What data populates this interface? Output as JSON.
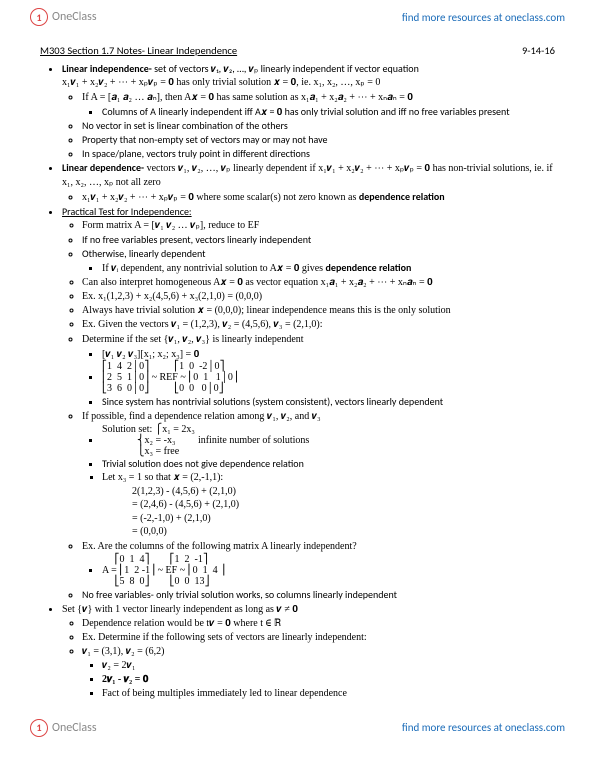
{
  "logo_text": "OneClass",
  "header_link": "find more resources at oneclass.com",
  "footer_link": "find more resources at oneclass.com",
  "title": "M303 Section 1.7 Notes- Linear Independence",
  "date": "9-14-16",
  "b1": {
    "label": "Linear independence-",
    "rest": " set of vectors 𝒗₁, 𝒗₂, …, 𝒗ₚ linearly independent if vector equation",
    "eq1": "x₁𝒗₁ + x₂𝒗₂ + ⋯ + xₚ𝒗ₚ = 𝟎 has only trivial solution 𝒙 = 𝟎, ie. x₁, x₂, …, xₚ = 0",
    "s1": "If A = [𝒂₁ 𝒂₂ … 𝒂ₙ], then A𝒙 = 𝟎 has same solution as x₁𝒂₁ + x₂𝒂₂ + ⋯ + xₙ𝒂ₙ = 𝟎",
    "s1a": "Columns of A linearly independent iff A𝒙 = 𝟎 has only trivial solution and iff no free variables present",
    "s2": "No vector in set is linear combination of the others",
    "s3": "Property that non-empty set of vectors may or may not have",
    "s4": "In space/plane, vectors truly point in different directions"
  },
  "b2": {
    "label": "Linear dependence-",
    "rest": " vectors 𝒗₁, 𝒗₂, …, 𝒗ₚ linearly dependent if x₁𝒗₁ + x₂𝒗₂ + ⋯ + xₚ𝒗ₚ = 𝟎 has non-trivial solutions, ie. if x₁, x₂, …, xₚ not all zero",
    "s1a": "x₁𝒗₁ + x₂𝒗₂ + ⋯ + xₚ𝒗ₚ = 𝟎 where some scalar(s) not zero known as ",
    "s1b": "dependence relation"
  },
  "b3": {
    "label": "Practical Test for Independence:",
    "s1": "Form matrix A = [𝒗₁ 𝒗₂ … 𝒗ₚ], reduce to EF",
    "s2": "If no free variables present, vectors linearly independent",
    "s3": "Otherwise, linearly dependent",
    "s3a_a": "If 𝒗ᵢ dependent, any nontrivial solution to A𝒙 = 𝟎 gives ",
    "s3a_b": "dependence relation",
    "s4": "Can also interpret homogeneous A𝒙 = 𝟎 as vector equation x₁𝒂₁ + x₂𝒂₂ + ⋯ + xₙ𝒂ₙ = 𝟎",
    "ex1": "Ex.        x₁(1,2,3) + x₂(4,5,6) + x₃(2,1,0) = (0,0,0)",
    "ex1a": "Always have trivial solution 𝒙 = (0,0,0); linear independence means this is the only solution",
    "ex2": "Ex.        Given the vectors 𝒗₁ = (1,2,3), 𝒗₂ = (4,5,6), 𝒗₃ = (2,1,0):",
    "ex2a": "Determine if the set {𝒗₁, 𝒗₂, 𝒗₃} is linearly independent",
    "ex2m1": "[𝒗₁ 𝒗₂ 𝒗₃][x₁; x₂; x₃] = 𝟎",
    "ex2m2a": "⎡1  4  2│0⎤          ⎡1  0  -2│0⎤\n⎢2  5  1│0⎥ ~ REF ~ ⎢0  1   1│0⎥\n⎣3  6  0│0⎦          ⎣0  0   0│0⎦",
    "ex2c": "Since system has nontrivial solutions (system consistent), vectors linearly dependent",
    "ex2d": "If possible, find a dependence relation among 𝒗₁, 𝒗₂, and 𝒗₃",
    "ex2sol": "Solution set: ⎧x₁ = 2x₃\n              ⎨x₂ = -x₃         infinite number of solutions\n              ⎩x₃ = free",
    "ex2triv": "Trivial solution does not give dependence relation",
    "ex2let": "Let x₃ = 1 so that 𝒙 = (2,-1,1):",
    "ex2calc1": "2(1,2,3) - (4,5,6) + (2,1,0)",
    "ex2calc2": "= (2,4,6) - (4,5,6) + (2,1,0)",
    "ex2calc3": "= (-2,-1,0) + (2,1,0)",
    "ex2calc4": "= (0,0,0)",
    "ex3": "Ex.        Are the columns of the following matrix A linearly independent?",
    "ex3m": "     ⎡0  1  4⎤        ⎡1  2  -1⎤\nA = ⎢1  2 -1⎥ ~ EF ~ ⎢0  1  4 ⎥\n     ⎣5  8  0⎦        ⎣0  0  13⎦",
    "ex3c": "No free variables- only trivial solution works, so columns linearly independent"
  },
  "b4": {
    "label": "Set {𝒗} with 1 vector linearly independent as long as 𝒗 ≠ 𝟎",
    "s1": "Dependence relation would be t𝒗 = 𝟎 where t ∈ ℝ",
    "ex": "Ex.        Determine if the following sets of vectors are linearly independent:",
    "exv": "𝒗₁ = (3,1), 𝒗₂ = (6,2)",
    "exa": "𝒗₂ = 2𝒗₁",
    "exb": "2𝒗₁ - 𝒗₂ = 𝟎",
    "exc": "Fact of being multiples immediately led to linear dependence"
  }
}
